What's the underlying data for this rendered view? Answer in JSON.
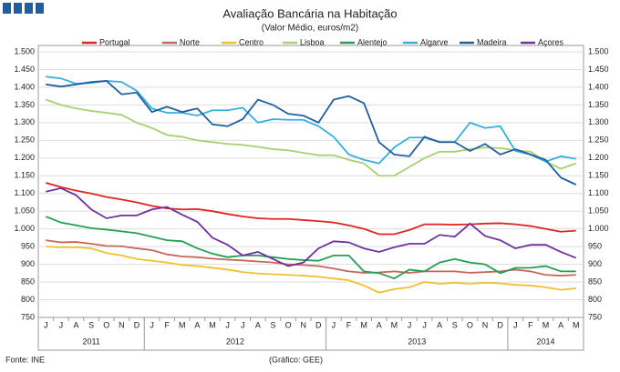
{
  "chart_data": {
    "type": "line",
    "title": "Avaliação Bancária na Habitação",
    "subtitle": "(Valor Médio, euros/m2)",
    "source": "Fonte: INE",
    "credit": "(Gráfico: GEE)",
    "categories": [
      "J",
      "J",
      "A",
      "S",
      "O",
      "N",
      "D",
      "J",
      "F",
      "M",
      "A",
      "M",
      "J",
      "J",
      "A",
      "S",
      "O",
      "N",
      "D",
      "J",
      "F",
      "M",
      "A",
      "M",
      "J",
      "J",
      "A",
      "S",
      "O",
      "N",
      "D",
      "J",
      "F",
      "M",
      "A",
      "M"
    ],
    "year_groups": [
      {
        "label": "2011",
        "start": 0,
        "end": 6
      },
      {
        "label": "2012",
        "start": 7,
        "end": 18
      },
      {
        "label": "2013",
        "start": 19,
        "end": 30
      },
      {
        "label": "2014",
        "start": 31,
        "end": 35
      }
    ],
    "ylim": [
      750,
      1500
    ],
    "yticks": [
      {
        "value": 1500,
        "label": "1.500"
      },
      {
        "value": 1450,
        "label": "1.450"
      },
      {
        "value": 1400,
        "label": "1.400"
      },
      {
        "value": 1350,
        "label": "1.350"
      },
      {
        "value": 1300,
        "label": "1.300"
      },
      {
        "value": 1250,
        "label": "1.250"
      },
      {
        "value": 1200,
        "label": "1.200"
      },
      {
        "value": 1150,
        "label": "1.150"
      },
      {
        "value": 1100,
        "label": "1.100"
      },
      {
        "value": 1050,
        "label": "1.050"
      },
      {
        "value": 1000,
        "label": "1.000"
      },
      950,
      900,
      850,
      800,
      750
    ],
    "grid": true,
    "series": [
      {
        "name": "Portugal",
        "color": "#e02424",
        "values": [
          1130,
          1118,
          1108,
          1100,
          1090,
          1083,
          1075,
          1065,
          1058,
          1055,
          1056,
          1050,
          1042,
          1035,
          1030,
          1028,
          1028,
          1025,
          1022,
          1018,
          1010,
          1000,
          985,
          985,
          997,
          1013,
          1013,
          1012,
          1013,
          1015,
          1016,
          1013,
          1008,
          1000,
          992,
          995
        ]
      },
      {
        "name": "Norte",
        "color": "#c8665c",
        "values": [
          968,
          962,
          963,
          958,
          952,
          951,
          945,
          940,
          928,
          922,
          920,
          916,
          913,
          911,
          908,
          905,
          900,
          898,
          895,
          888,
          880,
          876,
          877,
          880,
          876,
          880,
          880,
          880,
          876,
          878,
          880,
          885,
          880,
          870,
          868,
          870
        ]
      },
      {
        "name": "Centro",
        "color": "#f0c030",
        "values": [
          950,
          948,
          948,
          945,
          932,
          925,
          915,
          910,
          905,
          898,
          895,
          890,
          885,
          878,
          874,
          872,
          870,
          868,
          865,
          860,
          855,
          840,
          820,
          830,
          835,
          850,
          845,
          848,
          845,
          848,
          846,
          842,
          840,
          835,
          828,
          832
        ]
      },
      {
        "name": "Lisboa",
        "color": "#a8d070",
        "values": [
          1365,
          1350,
          1340,
          1333,
          1328,
          1322,
          1300,
          1285,
          1265,
          1260,
          1250,
          1245,
          1240,
          1237,
          1232,
          1225,
          1222,
          1215,
          1208,
          1208,
          1195,
          1185,
          1150,
          1150,
          1175,
          1200,
          1218,
          1218,
          1225,
          1230,
          1228,
          1222,
          1218,
          1190,
          1170,
          1185
        ]
      },
      {
        "name": "Alentejo",
        "color": "#22a050",
        "values": [
          1035,
          1018,
          1010,
          1002,
          998,
          993,
          988,
          978,
          968,
          965,
          945,
          930,
          920,
          925,
          925,
          920,
          915,
          912,
          910,
          925,
          925,
          880,
          875,
          860,
          885,
          880,
          905,
          915,
          905,
          900,
          875,
          890,
          890,
          895,
          880,
          880
        ]
      },
      {
        "name": "Algarve",
        "color": "#34b0e0",
        "values": [
          1430,
          1425,
          1410,
          1412,
          1418,
          1415,
          1390,
          1340,
          1328,
          1328,
          1320,
          1335,
          1335,
          1342,
          1300,
          1310,
          1308,
          1308,
          1290,
          1260,
          1210,
          1195,
          1185,
          1230,
          1258,
          1258,
          1245,
          1245,
          1300,
          1285,
          1290,
          1220,
          1210,
          1190,
          1205,
          1198
        ]
      },
      {
        "name": "Madeira",
        "color": "#1f5f9f",
        "values": [
          1408,
          1402,
          1408,
          1415,
          1418,
          1380,
          1385,
          1330,
          1345,
          1330,
          1340,
          1295,
          1290,
          1310,
          1365,
          1350,
          1325,
          1320,
          1300,
          1365,
          1375,
          1355,
          1245,
          1210,
          1205,
          1260,
          1245,
          1245,
          1220,
          1240,
          1210,
          1225,
          1210,
          1195,
          1145,
          1125
        ]
      },
      {
        "name": "Açores",
        "color": "#7030a0",
        "values": [
          1105,
          1115,
          1095,
          1055,
          1030,
          1038,
          1038,
          1055,
          1062,
          1040,
          1020,
          975,
          955,
          925,
          935,
          915,
          895,
          905,
          945,
          965,
          962,
          945,
          935,
          948,
          958,
          958,
          983,
          978,
          1015,
          980,
          968,
          945,
          955,
          955,
          935,
          918
        ]
      }
    ]
  }
}
